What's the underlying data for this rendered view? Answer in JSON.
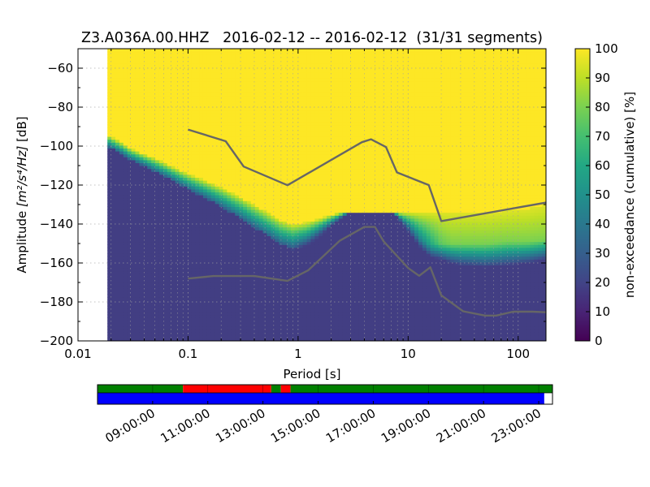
{
  "chart_data": {
    "type": "heatmap",
    "title": "Z3.A036A.00.HHZ   2016-02-12 -- 2016-02-12  (31/31 segments)",
    "xlabel": "Period [s]",
    "ylabel": "Amplitude [m²/s⁴/Hz] [dB]",
    "ylabel_prefix": "Amplitude ",
    "ylabel_unit": "[m²/s⁴/Hz]",
    "ylabel_suffix": " [dB]",
    "x_scale": "log",
    "xlim": [
      0.01,
      179
    ],
    "ylim": [
      -200,
      -50
    ],
    "x_ticks": [
      0.01,
      0.1,
      1,
      10,
      100
    ],
    "x_tick_labels": [
      "0.01",
      "0.1",
      "1",
      "10",
      "100"
    ],
    "y_ticks": [
      -60,
      -80,
      -100,
      -120,
      -140,
      -160,
      -180,
      -200
    ],
    "y_tick_labels": [
      "−60",
      "−80",
      "−100",
      "−120",
      "−140",
      "−160",
      "−180",
      "−200"
    ],
    "grid": true,
    "data_period_range": [
      0.0185,
      179
    ],
    "colorbar": {
      "label": "non-exceedance (cumulative) [%]",
      "range": [
        0,
        100
      ],
      "ticks": [
        0,
        10,
        20,
        30,
        40,
        50,
        60,
        70,
        80,
        90,
        100
      ],
      "tick_labels": [
        "0",
        "10",
        "20",
        "30",
        "40",
        "50",
        "60",
        "70",
        "80",
        "90",
        "100"
      ],
      "colormap": "viridis"
    },
    "distribution_profile": {
      "period": [
        0.0185,
        0.025,
        0.03,
        0.04,
        0.05,
        0.07,
        0.1,
        0.15,
        0.2,
        0.3,
        0.5,
        0.7,
        0.9,
        1.2,
        1.6,
        2.0,
        2.5,
        3.0,
        4.0,
        5.0,
        6.5,
        8.0,
        10.0,
        13.0,
        16.0,
        20.0,
        25.0,
        30.0,
        50.0,
        80.0,
        120.0,
        179.0
      ],
      "upper_edge_db": [
        -94,
        -98,
        -101,
        -104,
        -106,
        -110,
        -114,
        -118,
        -121,
        -126,
        -133,
        -138,
        -140,
        -139,
        -137,
        -135,
        -134,
        -134,
        -134,
        -134,
        -134,
        -134,
        -134,
        -134,
        -134,
        -134,
        -134,
        -134,
        -134,
        -133,
        -132,
        -130
      ],
      "median_edge_db": [
        -100,
        -104,
        -107,
        -110,
        -113,
        -117,
        -122,
        -127,
        -131,
        -137,
        -145,
        -150,
        -152,
        -149,
        -144,
        -140,
        -136,
        -133,
        -130,
        -128,
        -129,
        -136,
        -142,
        -148,
        -150,
        -150,
        -150,
        -150,
        -150,
        -149,
        -149,
        -148
      ],
      "saturation_edge_db": [
        -100,
        -104,
        -107,
        -110,
        -113,
        -117,
        -122,
        -127,
        -131,
        -137,
        -145,
        -150,
        -153,
        -151,
        -146,
        -141,
        -137,
        -134,
        -131,
        -128,
        -129,
        -137,
        -144,
        -152,
        -157,
        -158,
        -160,
        -161,
        -162,
        -161,
        -160,
        -158
      ],
      "bottom_level_pct": [
        18,
        18,
        18,
        18,
        18,
        18,
        18,
        18,
        18,
        18,
        18,
        18,
        18,
        18,
        18,
        18,
        18,
        18,
        18,
        18,
        18,
        18,
        18,
        18,
        18,
        18,
        18,
        18,
        18,
        18,
        18,
        18
      ],
      "band_plateau_pct": [
        30,
        30,
        30,
        30,
        30,
        30,
        30,
        30,
        30,
        30,
        30,
        30,
        30,
        30,
        30,
        30,
        30,
        30,
        30,
        30,
        30,
        30,
        30,
        45,
        60,
        75,
        80,
        80,
        80,
        80,
        80,
        80
      ]
    },
    "series": [
      {
        "x": [
          0.1,
          0.22,
          0.32,
          0.8,
          3.8,
          4.6,
          6.3,
          7.9,
          15.4,
          20.0,
          179.0
        ],
        "y": [
          -91.5,
          -97.5,
          -110.5,
          -120.1,
          -98.0,
          -96.5,
          -100.5,
          -113.5,
          -120.0,
          -138.5,
          -129.0
        ]
      },
      {
        "x": [
          0.1,
          0.17,
          0.4,
          0.8,
          1.24,
          2.4,
          4.0,
          5.0,
          6.0,
          10.0,
          12.6,
          15.9,
          20.0,
          31.6,
          50.0,
          63.1,
          90.0,
          135.0,
          179.0
        ],
        "y": [
          -168.0,
          -166.7,
          -166.7,
          -169.2,
          -163.7,
          -148.5,
          -141.5,
          -141.5,
          -149.0,
          -162.6,
          -166.6,
          -162.2,
          -176.6,
          -184.8,
          -187.0,
          -187.0,
          -185.0,
          -185.0,
          -185.3
        ]
      }
    ]
  },
  "timeline": {
    "tick_labels": [
      "09:00:00",
      "11:00:00",
      "13:00:00",
      "15:00:00",
      "17:00:00",
      "19:00:00",
      "21:00:00",
      "23:00:00"
    ],
    "tick_hours": [
      9,
      11,
      13,
      15,
      17,
      19,
      21,
      23
    ],
    "hour_range": [
      7.2,
      23.7
    ],
    "psd_segments": [
      {
        "start": 7.2,
        "end": 10.3,
        "color": "#008000"
      },
      {
        "start": 10.3,
        "end": 13.5,
        "color": "#ff0000"
      },
      {
        "start": 13.5,
        "end": 13.85,
        "color": "#008000"
      },
      {
        "start": 13.85,
        "end": 14.2,
        "color": "#ff0000"
      },
      {
        "start": 14.2,
        "end": 23.7,
        "color": "#008000"
      }
    ],
    "coverage_segments": [
      {
        "start": 7.2,
        "end": 23.4,
        "color": "#0000ff"
      }
    ],
    "ticks_top": [
      7.2,
      9.2,
      11.2,
      13.2,
      15.2,
      17.2,
      19.2,
      21.2,
      23.2
    ],
    "ticks_bottom": [
      9.2,
      11.2,
      13.2,
      15.2,
      17.2,
      19.2,
      21.2,
      23.2
    ]
  }
}
